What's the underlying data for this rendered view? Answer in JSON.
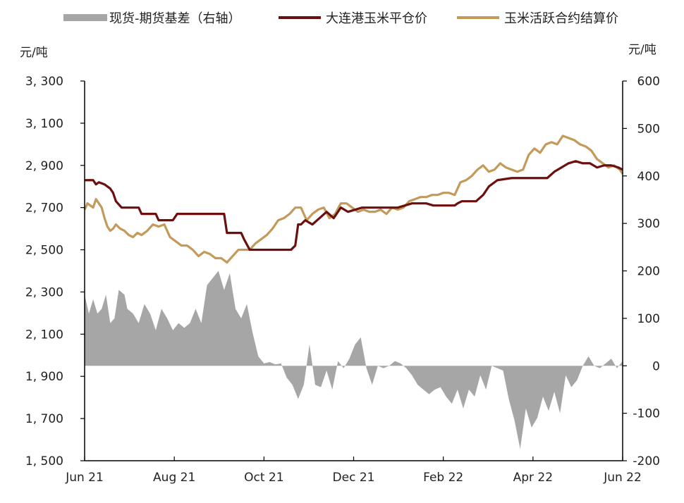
{
  "chart_data": {
    "type": "line",
    "legend_position": "top",
    "y_unit_left": "元/吨",
    "y_unit_right": "元/吨",
    "ylim_left": [
      1500,
      3300
    ],
    "ylim_right": [
      -200,
      600
    ],
    "y_ticks_left": [
      "3, 300",
      "3, 100",
      "2, 900",
      "2, 700",
      "2, 500",
      "2, 300",
      "2, 100",
      "1, 900",
      "1, 700",
      "1, 500"
    ],
    "y_ticks_right": [
      "600",
      "500",
      "400",
      "300",
      "200",
      "100",
      "0",
      "-100",
      "-200"
    ],
    "x_ticks": [
      "Jun 21",
      "Aug 21",
      "Oct 21",
      "Dec 21",
      "Feb 22",
      "Apr 22",
      "Jun 22"
    ],
    "series": [
      {
        "name": "现货-期货基差（右轴）",
        "kind": "area",
        "axis": "right",
        "color": "#a6a6a6",
        "x": [
          0,
          3,
          6,
          9,
          12,
          15,
          18,
          21,
          24,
          28,
          30,
          34,
          38,
          42,
          46,
          50,
          54,
          58,
          62,
          66,
          70,
          74,
          78,
          82,
          86,
          90,
          94,
          98,
          102,
          106,
          110,
          114,
          118,
          122,
          126,
          130,
          134,
          138,
          142,
          146,
          150,
          154,
          158,
          162,
          166,
          170,
          174,
          178,
          182,
          186,
          190,
          194,
          198,
          202,
          206,
          210,
          214,
          218,
          222,
          226,
          230,
          234,
          238,
          242,
          246,
          250,
          254,
          258,
          262,
          266,
          270,
          274,
          278,
          282,
          286,
          290,
          294,
          298,
          302,
          306,
          310,
          314,
          318,
          322,
          326,
          330,
          334,
          338,
          342,
          346,
          350,
          354,
          358,
          362,
          366,
          370,
          374,
          378
        ],
        "values": [
          150,
          110,
          140,
          110,
          120,
          150,
          90,
          100,
          160,
          150,
          120,
          110,
          90,
          130,
          110,
          75,
          120,
          100,
          75,
          90,
          80,
          90,
          120,
          90,
          170,
          185,
          200,
          160,
          195,
          120,
          100,
          130,
          70,
          20,
          5,
          8,
          3,
          5,
          -25,
          -40,
          -70,
          -40,
          45,
          -40,
          -45,
          -10,
          -50,
          10,
          -5,
          15,
          45,
          60,
          -5,
          -40,
          0,
          -5,
          0,
          10,
          5,
          -5,
          -20,
          -40,
          -50,
          -60,
          -50,
          -45,
          -65,
          -80,
          -50,
          -90,
          -50,
          -65,
          -20,
          -50,
          0,
          -5,
          -10,
          -70,
          -115,
          -175,
          -90,
          -130,
          -110,
          -65,
          -95,
          -55,
          -100,
          -20,
          -45,
          -30,
          0,
          20,
          0,
          -5,
          5,
          15,
          -5,
          10
        ],
        "fill_to": 0
      },
      {
        "name": "大连港玉米平仓价",
        "kind": "line",
        "axis": "left",
        "color": "#6b0f0f",
        "x": [
          0,
          6,
          8,
          10,
          14,
          16,
          18,
          20,
          22,
          26,
          38,
          40,
          50,
          52,
          62,
          65,
          98,
          100,
          104,
          110,
          112,
          116,
          145,
          148,
          150,
          152,
          155,
          160,
          165,
          170,
          175,
          180,
          185,
          190,
          195,
          200,
          210,
          220,
          225,
          230,
          240,
          245,
          250,
          255,
          260,
          262,
          265,
          270,
          275,
          280,
          282,
          284,
          290,
          300,
          310,
          315,
          320,
          325,
          330,
          335,
          340,
          345,
          350,
          355,
          360,
          365,
          370,
          375,
          378
        ],
        "values": [
          2830,
          2830,
          2810,
          2820,
          2810,
          2800,
          2790,
          2770,
          2730,
          2700,
          2700,
          2670,
          2670,
          2640,
          2640,
          2670,
          2670,
          2580,
          2580,
          2580,
          2550,
          2500,
          2500,
          2520,
          2620,
          2620,
          2640,
          2620,
          2650,
          2680,
          2650,
          2700,
          2680,
          2690,
          2700,
          2700,
          2700,
          2700,
          2710,
          2720,
          2720,
          2710,
          2710,
          2710,
          2710,
          2720,
          2730,
          2730,
          2730,
          2760,
          2780,
          2800,
          2830,
          2840,
          2840,
          2840,
          2840,
          2840,
          2870,
          2890,
          2910,
          2920,
          2910,
          2910,
          2890,
          2900,
          2900,
          2890,
          2880
        ]
      },
      {
        "name": "玉米活跃合约结算价",
        "kind": "line",
        "axis": "left",
        "color": "#c49a5a",
        "x": [
          0,
          2,
          4,
          6,
          8,
          10,
          12,
          14,
          16,
          18,
          20,
          22,
          25,
          28,
          31,
          34,
          37,
          40,
          44,
          48,
          52,
          56,
          60,
          64,
          68,
          72,
          76,
          80,
          84,
          88,
          92,
          96,
          100,
          104,
          108,
          112,
          116,
          120,
          124,
          128,
          132,
          136,
          140,
          144,
          148,
          152,
          156,
          160,
          164,
          168,
          172,
          176,
          180,
          184,
          188,
          192,
          196,
          200,
          204,
          208,
          212,
          216,
          220,
          224,
          228,
          232,
          236,
          240,
          244,
          248,
          252,
          256,
          260,
          264,
          268,
          272,
          276,
          280,
          284,
          288,
          292,
          296,
          300,
          304,
          308,
          312,
          316,
          320,
          324,
          328,
          332,
          336,
          340,
          344,
          348,
          352,
          356,
          360,
          364,
          368,
          372,
          376,
          378
        ],
        "values": [
          2690,
          2720,
          2710,
          2700,
          2740,
          2720,
          2700,
          2650,
          2610,
          2590,
          2600,
          2620,
          2600,
          2590,
          2570,
          2560,
          2580,
          2570,
          2590,
          2620,
          2610,
          2620,
          2560,
          2540,
          2520,
          2520,
          2500,
          2470,
          2490,
          2480,
          2460,
          2460,
          2440,
          2470,
          2500,
          2500,
          2500,
          2530,
          2550,
          2570,
          2600,
          2640,
          2650,
          2670,
          2700,
          2700,
          2640,
          2670,
          2690,
          2700,
          2650,
          2670,
          2720,
          2720,
          2700,
          2680,
          2690,
          2680,
          2680,
          2690,
          2670,
          2700,
          2690,
          2700,
          2730,
          2740,
          2750,
          2750,
          2760,
          2760,
          2770,
          2770,
          2760,
          2820,
          2830,
          2850,
          2880,
          2900,
          2870,
          2880,
          2910,
          2890,
          2880,
          2870,
          2880,
          2950,
          2980,
          2960,
          3000,
          3010,
          3000,
          3040,
          3030,
          3020,
          3000,
          2990,
          2970,
          2930,
          2910,
          2890,
          2900,
          2880,
          2860
        ]
      }
    ]
  }
}
